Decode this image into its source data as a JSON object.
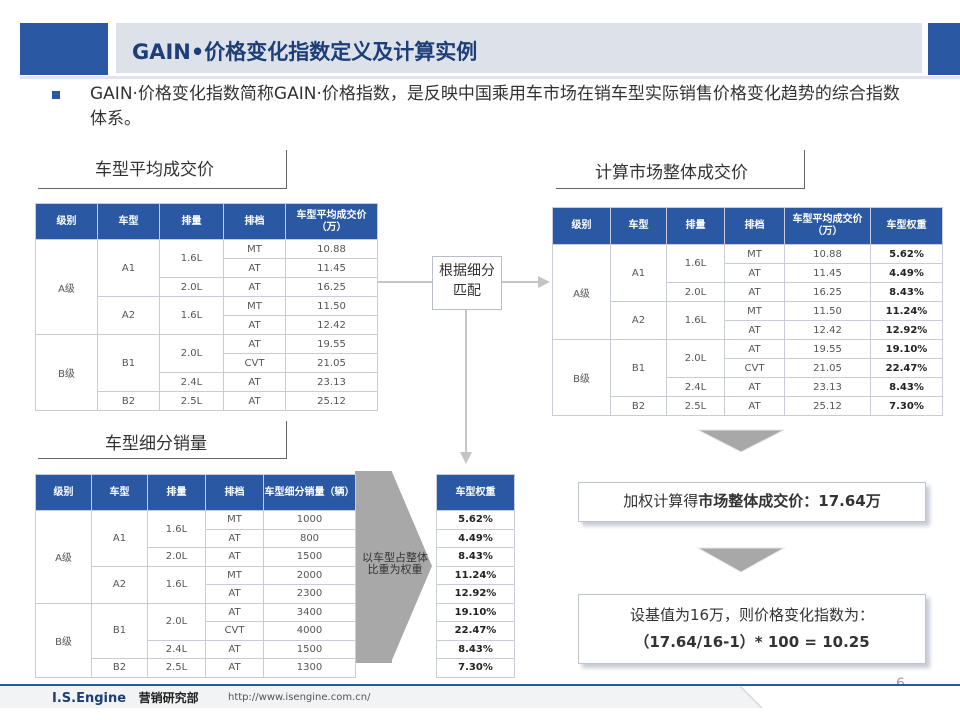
{
  "title": "GAIN•价格变化指数定义及计算实例",
  "intro": "GAIN·价格变化指数简称GAIN·价格指数，是反映中国乘用车市场在销车型实际销售价格变化趋势的综合指数体系。",
  "sections": {
    "avg_price": "车型平均成交价",
    "market_price": "计算市场整体成交价",
    "sales_volume": "车型细分销量"
  },
  "headers": {
    "level": "级别",
    "model": "车型",
    "displacement": "排量",
    "gear": "排档",
    "avg_price": "车型平均成交价（万）",
    "weight": "车型权重",
    "sales": "车型细分销量（辆）"
  },
  "rows": [
    {
      "level": "A级",
      "model": "A1",
      "disp": "1.6L",
      "gear": "MT",
      "price": "10.88",
      "sales": "1000",
      "weight": "5.62%"
    },
    {
      "level": "A级",
      "model": "A1",
      "disp": "1.6L",
      "gear": "AT",
      "price": "11.45",
      "sales": "800",
      "weight": "4.49%"
    },
    {
      "level": "A级",
      "model": "A1",
      "disp": "2.0L",
      "gear": "AT",
      "price": "16.25",
      "sales": "1500",
      "weight": "8.43%"
    },
    {
      "level": "A级",
      "model": "A2",
      "disp": "1.6L",
      "gear": "MT",
      "price": "11.50",
      "sales": "2000",
      "weight": "11.24%"
    },
    {
      "level": "A级",
      "model": "A2",
      "disp": "1.6L",
      "gear": "AT",
      "price": "12.42",
      "sales": "2300",
      "weight": "12.92%"
    },
    {
      "level": "B级",
      "model": "B1",
      "disp": "2.0L",
      "gear": "AT",
      "price": "19.55",
      "sales": "3400",
      "weight": "19.10%"
    },
    {
      "level": "B级",
      "model": "B1",
      "disp": "2.0L",
      "gear": "CVT",
      "price": "21.05",
      "sales": "4000",
      "weight": "22.47%"
    },
    {
      "level": "B级",
      "model": "B1",
      "disp": "2.4L",
      "gear": "AT",
      "price": "23.13",
      "sales": "1500",
      "weight": "8.43%"
    },
    {
      "level": "B级",
      "model": "B2",
      "disp": "2.5L",
      "gear": "AT",
      "price": "25.12",
      "sales": "1300",
      "weight": "7.30%"
    }
  ],
  "merge_label": "根据细分匹配",
  "weight_arrow_label": "以车型占整体比重为权重",
  "result": {
    "prefix": "加权计算得",
    "bold": "市场整体成交价：",
    "value": "17.64万"
  },
  "index": {
    "line1": "设基值为16万，则价格变化指数为：",
    "line2": "（17.64/16-1）* 100 = 10.25"
  },
  "page_number": "6",
  "footer": {
    "brand": "I.S.Engine",
    "dept": "营销研究部",
    "url": "http://www.isengine.com.cn/"
  },
  "colors": {
    "brand_blue": "#2a58a2",
    "title_text": "#1d3e77",
    "arrow_gray": "#a8a8a8"
  }
}
